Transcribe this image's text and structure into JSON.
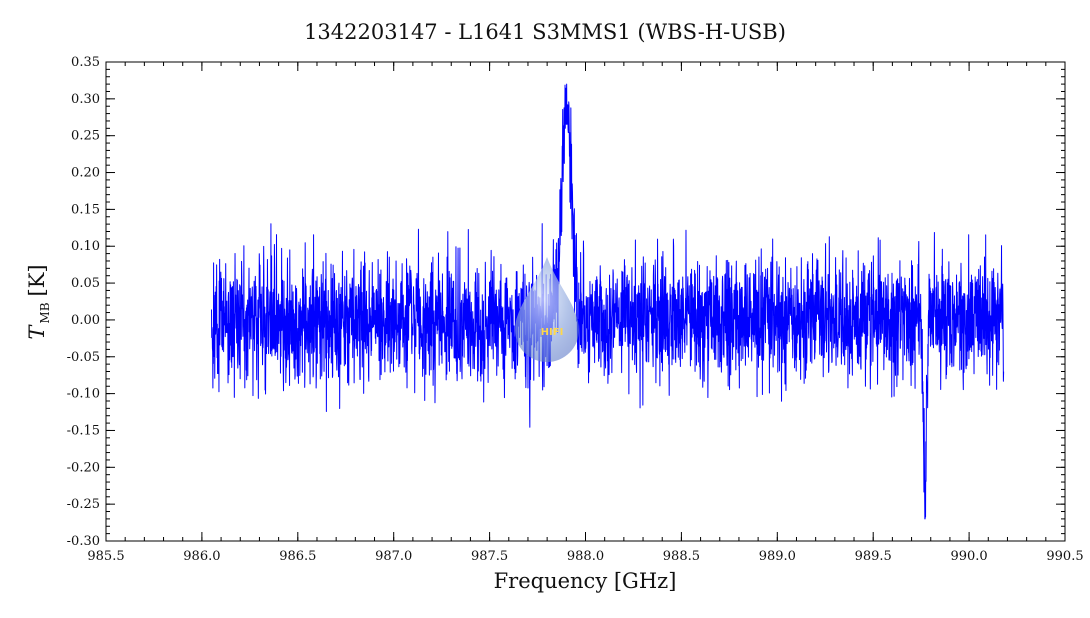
{
  "chart_data": {
    "type": "line",
    "title": "1342203147 - L1641 S3MMS1 (WBS-H-USB)",
    "xlabel": "Frequency [GHz]",
    "ylabel_main": "T",
    "ylabel_sub": "MB",
    "ylabel_unit": "[K]",
    "xlim": [
      985.5,
      990.5
    ],
    "ylim": [
      -0.3,
      0.35
    ],
    "x_ticks": [
      "985.5",
      "986.0",
      "986.5",
      "987.0",
      "987.5",
      "988.0",
      "988.5",
      "989.0",
      "989.5",
      "990.0",
      "990.5"
    ],
    "y_ticks": [
      "-0.30",
      "-0.25",
      "-0.20",
      "-0.15",
      "-0.10",
      "-0.05",
      "0.00",
      "0.05",
      "0.10",
      "0.15",
      "0.20",
      "0.25",
      "0.30",
      "0.35"
    ],
    "grid": false,
    "series": [
      {
        "color": "#0000ff",
        "x_range": [
          986.05,
          990.18
        ],
        "noise_rms": 0.04,
        "emission_line": {
          "center": 987.9,
          "peak": 0.3,
          "fwhm": 0.06
        },
        "absorption_feature": {
          "center": 989.77,
          "depth": -0.26,
          "fwhm": 0.02
        }
      }
    ],
    "watermark_text": "HIFI"
  }
}
